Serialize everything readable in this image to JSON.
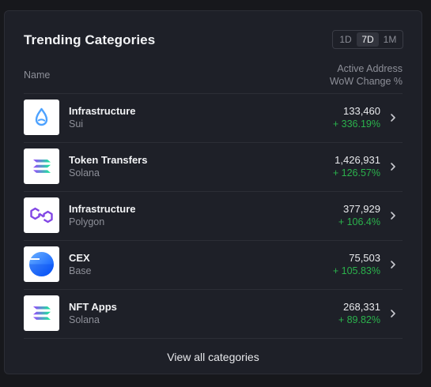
{
  "card": {
    "title": "Trending Categories",
    "timeframes": [
      "1D",
      "7D",
      "1M"
    ],
    "active_timeframe": "7D"
  },
  "table": {
    "col_name": "Name",
    "col_metric_line1": "Active Address",
    "col_metric_line2": "WoW Change %"
  },
  "rows": [
    {
      "name": "Infrastructure",
      "chain": "Sui",
      "value": "133,460",
      "change": "+ 336.19%",
      "icon": "sui-logo-icon"
    },
    {
      "name": "Token Transfers",
      "chain": "Solana",
      "value": "1,426,931",
      "change": "+ 126.57%",
      "icon": "solana-logo-icon"
    },
    {
      "name": "Infrastructure",
      "chain": "Polygon",
      "value": "377,929",
      "change": "+ 106.4%",
      "icon": "polygon-logo-icon"
    },
    {
      "name": "CEX",
      "chain": "Base",
      "value": "75,503",
      "change": "+ 105.83%",
      "icon": "base-logo-icon"
    },
    {
      "name": "NFT Apps",
      "chain": "Solana",
      "value": "268,331",
      "change": "+ 89.82%",
      "icon": "solana-logo-icon"
    }
  ],
  "footer": {
    "view_all_label": "View all categories"
  },
  "colors": {
    "background": "#17181c",
    "card": "#1e2028",
    "positive": "#2bb24c",
    "sui": "#4da2ff",
    "polygon": "#8247e5",
    "base": "#0052ff"
  }
}
